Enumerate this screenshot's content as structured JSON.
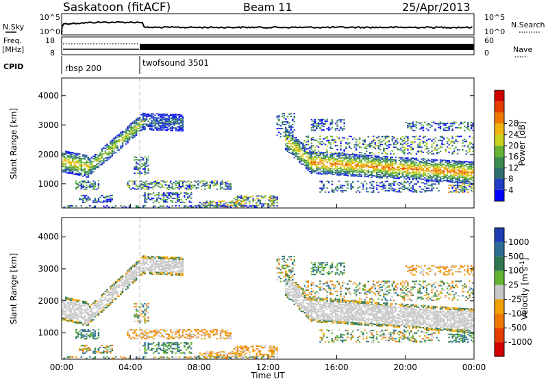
{
  "header": {
    "station": "Saskatoon (fitACF)",
    "beam": "Beam 11",
    "date": "25/Apr/2013"
  },
  "top_panels": {
    "nsky_label": "N.Sky",
    "nsky_ticks": [
      "10^5",
      "10^0"
    ],
    "nsearch_label": "N.Search",
    "nsearch_ticks": [
      "10^5",
      "10^0"
    ],
    "freq_label": "Freq.",
    "freq_unit": "[MHz]",
    "freq_ticks": [
      "18",
      "8"
    ],
    "nave_label": "Nave",
    "nave_ticks": [
      "60",
      "0"
    ],
    "cpid_label": "CPID",
    "cpid_segments": [
      {
        "name": "rbsp 200",
        "start_hour": 0.0,
        "end_hour": 4.7
      },
      {
        "name": "twofsound 3501",
        "start_hour": 4.7,
        "end_hour": 24.0
      }
    ]
  },
  "chart_data": [
    {
      "type": "heatmap",
      "panel": "power",
      "ylabel": "Slant Range [km]",
      "xlabel": "",
      "xlim_hours": [
        0,
        24
      ],
      "ylim_km": [
        180,
        4600
      ],
      "yticks": [
        "1000",
        "2000",
        "3000",
        "4000"
      ],
      "colorbar": {
        "label": "Power [dB]",
        "ticks": [
          "4",
          "8",
          "12",
          "16",
          "20",
          "24",
          "28"
        ],
        "colors": [
          "#0000ff",
          "#1e3cc8",
          "#2d6e6e",
          "#3c8c50",
          "#64b432",
          "#c8d21e",
          "#f0b40a",
          "#f07800",
          "#e63c00",
          "#d20000"
        ]
      },
      "echo_bands": [
        {
          "start_hour": 0.0,
          "end_hour": 1.6,
          "range_start_km": 1750,
          "range_end_km": 1550,
          "peak_db": 24
        },
        {
          "start_hour": 1.6,
          "end_hour": 4.7,
          "range_start_km": 1550,
          "range_end_km": 3100,
          "peak_db": 20
        },
        {
          "start_hour": 4.7,
          "end_hour": 7.0,
          "range_start_km": 3100,
          "range_end_km": 3050,
          "peak_db": 8
        },
        {
          "start_hour": 13.0,
          "end_hour": 14.5,
          "range_start_km": 2500,
          "range_end_km": 1700,
          "peak_db": 24
        },
        {
          "start_hour": 14.5,
          "end_hour": 24.0,
          "range_start_km": 1700,
          "range_end_km": 1350,
          "peak_db": 28
        }
      ]
    },
    {
      "type": "heatmap",
      "panel": "velocity",
      "ylabel": "Slant Range [km]",
      "xlabel": "Time UT",
      "xlim_hours": [
        0,
        24
      ],
      "ylim_km": [
        180,
        4600
      ],
      "yticks": [
        "1000",
        "2000",
        "3000",
        "4000"
      ],
      "xticks": [
        "00:00",
        "04:00",
        "08:00",
        "12:00",
        "16:00",
        "20:00",
        "00:00"
      ],
      "colorbar": {
        "label": "Velocity [m s",
        "label_exponent": "-1",
        "label_close": "]",
        "ticks": [
          "1000",
          "500",
          "100",
          "25",
          "-25",
          "-100",
          "-500",
          "-1000"
        ],
        "colors": [
          "#1e3cb4",
          "#2d6e96",
          "#2d7850",
          "#64b432",
          "#c8c8c8",
          "#f0a000",
          "#f07800",
          "#e63c00",
          "#d20000"
        ]
      }
    }
  ]
}
